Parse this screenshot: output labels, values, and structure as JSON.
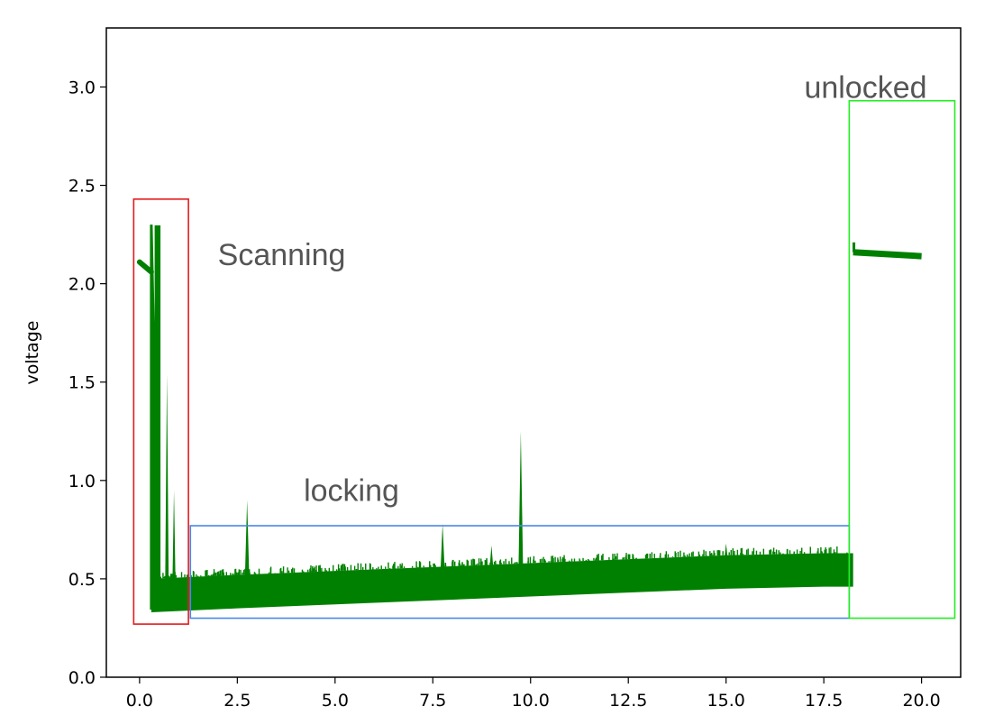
{
  "chart_data": {
    "type": "scatter",
    "title": "",
    "xlabel": "",
    "ylabel": "voltage",
    "xlim": [
      -0.85,
      21.0
    ],
    "ylim": [
      0.0,
      3.3
    ],
    "xticks": [
      0.0,
      2.5,
      5.0,
      7.5,
      10.0,
      12.5,
      15.0,
      17.5,
      20.0
    ],
    "xtick_labels": [
      "0.0",
      "2.5",
      "5.0",
      "7.5",
      "10.0",
      "12.5",
      "15.0",
      "17.5",
      "20.0"
    ],
    "yticks": [
      0.0,
      0.5,
      1.0,
      1.5,
      2.0,
      2.5,
      3.0
    ],
    "ytick_labels": [
      "0.0",
      "0.5",
      "1.0",
      "1.5",
      "2.0",
      "2.5",
      "3.0"
    ],
    "grid": false,
    "series": [
      {
        "color": "#008000",
        "segments": {
          "scan_ramp": [
            [
              0.0,
              2.11
            ],
            [
              0.3,
              2.06
            ]
          ],
          "scan_peak": [
            [
              0.3,
              2.3
            ],
            [
              0.3,
              0.35
            ],
            [
              0.42,
              0.35
            ],
            [
              0.42,
              2.29
            ],
            [
              0.5,
              2.29
            ],
            [
              0.5,
              0.35
            ]
          ],
          "scan_spikes": [
            [
              0.7,
              1.54
            ],
            [
              0.88,
              0.95
            ]
          ],
          "locking_band": {
            "x": [
              0.3,
              2.5,
              5.0,
              7.5,
              10.0,
              12.5,
              15.0,
              17.5,
              18.25
            ],
            "low": [
              0.33,
              0.35,
              0.37,
              0.39,
              0.41,
              0.43,
              0.45,
              0.46,
              0.46
            ],
            "high": [
              0.5,
              0.52,
              0.54,
              0.56,
              0.58,
              0.6,
              0.62,
              0.63,
              0.63
            ]
          },
          "locking_spikes": [
            [
              2.75,
              0.9
            ],
            [
              7.75,
              0.78
            ],
            [
              9.0,
              0.67
            ],
            [
              9.75,
              1.25
            ],
            [
              15.0,
              0.68
            ]
          ],
          "unlocked_level": {
            "x": [
              18.25,
              20.0
            ],
            "y": [
              2.16,
              2.14
            ],
            "start_spike": 2.21
          }
        }
      }
    ],
    "annotations": [
      {
        "text": "Scanning",
        "x": 2.0,
        "y": 2.15,
        "box_color": "#e41a1c",
        "box": [
          -0.15,
          1.25,
          0.27,
          2.43
        ]
      },
      {
        "text": "locking",
        "x": 4.2,
        "y": 0.95,
        "box_color": "#4a86e8",
        "box": [
          1.3,
          18.15,
          0.3,
          0.77
        ]
      },
      {
        "text": "unlocked",
        "x": 17.0,
        "y": 3.0,
        "box_color": "#22ee22",
        "box": [
          18.15,
          20.85,
          0.3,
          2.93
        ]
      }
    ]
  }
}
